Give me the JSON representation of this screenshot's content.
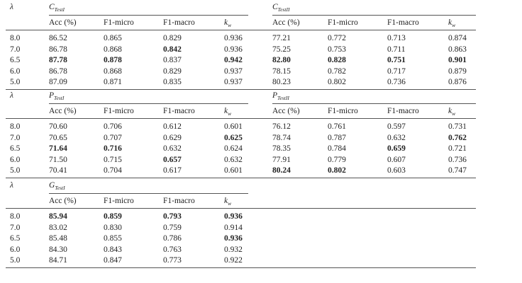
{
  "lambda_symbol": "λ",
  "group_prefix": "C",
  "blocks": [
    {
      "groups": [
        {
          "letter": "C",
          "subscript": "TestI",
          "headers": [
            "Acc (%)",
            "F1-micro",
            "F1-macro",
            "k",
            "w"
          ],
          "rows": [
            [
              {
                "v": "86.52"
              },
              {
                "v": "0.865"
              },
              {
                "v": "0.829"
              },
              {
                "v": "0.936"
              }
            ],
            [
              {
                "v": "86.78"
              },
              {
                "v": "0.868"
              },
              {
                "v": "0.842",
                "b": true
              },
              {
                "v": "0.936"
              }
            ],
            [
              {
                "v": "87.78",
                "b": true
              },
              {
                "v": "0.878",
                "b": true
              },
              {
                "v": "0.837"
              },
              {
                "v": "0.942",
                "b": true
              }
            ],
            [
              {
                "v": "86.78"
              },
              {
                "v": "0.868"
              },
              {
                "v": "0.829"
              },
              {
                "v": "0.937"
              }
            ],
            [
              {
                "v": "87.09"
              },
              {
                "v": "0.871"
              },
              {
                "v": "0.835"
              },
              {
                "v": "0.937"
              }
            ]
          ]
        },
        {
          "letter": "C",
          "subscript": "TestII",
          "headers": [
            "Acc (%)",
            "F1-micro",
            "F1-macro",
            "k",
            "w"
          ],
          "rows": [
            [
              {
                "v": "77.21"
              },
              {
                "v": "0.772"
              },
              {
                "v": "0.713"
              },
              {
                "v": "0.874"
              }
            ],
            [
              {
                "v": "75.25"
              },
              {
                "v": "0.753"
              },
              {
                "v": "0.711"
              },
              {
                "v": "0.863"
              }
            ],
            [
              {
                "v": "82.80",
                "b": true
              },
              {
                "v": "0.828",
                "b": true
              },
              {
                "v": "0.751",
                "b": true
              },
              {
                "v": "0.901",
                "b": true
              }
            ],
            [
              {
                "v": "78.15"
              },
              {
                "v": "0.782"
              },
              {
                "v": "0.717"
              },
              {
                "v": "0.879"
              }
            ],
            [
              {
                "v": "80.23"
              },
              {
                "v": "0.802"
              },
              {
                "v": "0.736"
              },
              {
                "v": "0.876"
              }
            ]
          ]
        }
      ],
      "lambdas": [
        "8.0",
        "7.0",
        "6.5",
        "6.0",
        "5.0"
      ]
    },
    {
      "groups": [
        {
          "letter": "P",
          "subscript": "TestI",
          "headers": [
            "Acc (%)",
            "F1-micro",
            "F1-macro",
            "k",
            "w"
          ],
          "rows": [
            [
              {
                "v": "70.60"
              },
              {
                "v": "0.706"
              },
              {
                "v": "0.612"
              },
              {
                "v": "0.601"
              }
            ],
            [
              {
                "v": "70.65"
              },
              {
                "v": "0.707"
              },
              {
                "v": "0.629"
              },
              {
                "v": "0.625",
                "b": true
              }
            ],
            [
              {
                "v": "71.64",
                "b": true
              },
              {
                "v": "0.716",
                "b": true
              },
              {
                "v": "0.632"
              },
              {
                "v": "0.624"
              }
            ],
            [
              {
                "v": "71.50"
              },
              {
                "v": "0.715"
              },
              {
                "v": "0.657",
                "b": true
              },
              {
                "v": "0.632"
              }
            ],
            [
              {
                "v": "70.41"
              },
              {
                "v": "0.704"
              },
              {
                "v": "0.617"
              },
              {
                "v": "0.601"
              }
            ]
          ]
        },
        {
          "letter": "P",
          "subscript": "TestII",
          "headers": [
            "Acc (%)",
            "F1-micro",
            "F1-macro",
            "k",
            "w"
          ],
          "rows": [
            [
              {
                "v": "76.12"
              },
              {
                "v": "0.761"
              },
              {
                "v": "0.597"
              },
              {
                "v": "0.731"
              }
            ],
            [
              {
                "v": "78.74"
              },
              {
                "v": "0.787"
              },
              {
                "v": "0.632"
              },
              {
                "v": "0.762",
                "b": true
              }
            ],
            [
              {
                "v": "78.35"
              },
              {
                "v": "0.784"
              },
              {
                "v": "0.659",
                "b": true
              },
              {
                "v": "0.721"
              }
            ],
            [
              {
                "v": "77.91"
              },
              {
                "v": "0.779"
              },
              {
                "v": "0.607"
              },
              {
                "v": "0.736"
              }
            ],
            [
              {
                "v": "80.24",
                "b": true
              },
              {
                "v": "0.802",
                "b": true
              },
              {
                "v": "0.603"
              },
              {
                "v": "0.747"
              }
            ]
          ]
        }
      ],
      "lambdas": [
        "8.0",
        "7.0",
        "6.5",
        "6.0",
        "5.0"
      ]
    },
    {
      "groups": [
        {
          "letter": "G",
          "subscript": "TestI",
          "headers": [
            "Acc (%)",
            "F1-micro",
            "F1-macro",
            "k",
            "w"
          ],
          "rows": [
            [
              {
                "v": "85.94",
                "b": true
              },
              {
                "v": "0.859",
                "b": true
              },
              {
                "v": "0.793",
                "b": true
              },
              {
                "v": "0.936",
                "b": true
              }
            ],
            [
              {
                "v": "83.02"
              },
              {
                "v": "0.830"
              },
              {
                "v": "0.759"
              },
              {
                "v": "0.914"
              }
            ],
            [
              {
                "v": "85.48"
              },
              {
                "v": "0.855"
              },
              {
                "v": "0.786"
              },
              {
                "v": "0.936",
                "b": true
              }
            ],
            [
              {
                "v": "84.30"
              },
              {
                "v": "0.843"
              },
              {
                "v": "0.763"
              },
              {
                "v": "0.932"
              }
            ],
            [
              {
                "v": "84.71"
              },
              {
                "v": "0.847"
              },
              {
                "v": "0.773"
              },
              {
                "v": "0.922"
              }
            ]
          ]
        }
      ],
      "lambdas": [
        "8.0",
        "7.0",
        "6.5",
        "6.0",
        "5.0"
      ]
    }
  ]
}
